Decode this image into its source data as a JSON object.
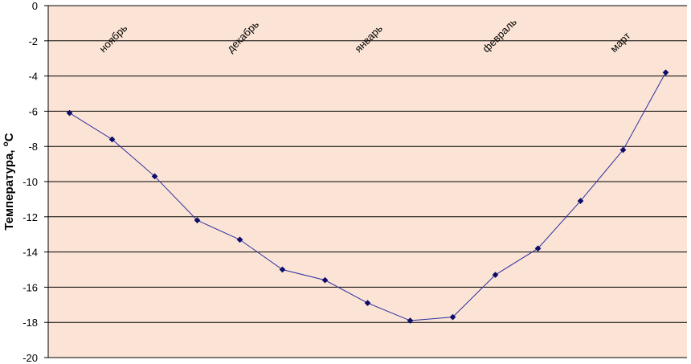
{
  "colors": {
    "plot_background": "#FBE4D5",
    "gridline": "#000000",
    "axis": "#000000",
    "series_line": "#2E2EA0",
    "marker": "#0D0D6B"
  },
  "chart_data": {
    "type": "line",
    "title": "",
    "xlabel": "",
    "ylabel": {
      "main": "Температура, ",
      "unit_sup": "о",
      "unit": "С"
    },
    "ylim": [
      -20,
      0
    ],
    "ytick_step": 2,
    "yticks": [
      "0",
      "-2",
      "-4",
      "-6",
      "-8",
      "-10",
      "-12",
      "-14",
      "-16",
      "-18",
      "-20"
    ],
    "grid": true,
    "legend": "none",
    "month_labels": [
      {
        "label": "ноябрь",
        "x": 1.8
      },
      {
        "label": "декабрь",
        "x": 4.8
      },
      {
        "label": "январь",
        "x": 7.8
      },
      {
        "label": "февраль",
        "x": 10.8
      },
      {
        "label": "март",
        "x": 13.8
      }
    ],
    "series": [
      {
        "x": [
          1,
          2,
          3,
          4,
          5,
          6,
          7,
          8,
          9,
          10,
          11,
          12,
          13,
          14,
          15
        ],
        "values": [
          -6.1,
          -7.6,
          -9.7,
          -12.2,
          -13.3,
          -15.0,
          -15.6,
          -16.9,
          -17.9,
          -17.7,
          -15.3,
          -13.8,
          -11.1,
          -8.2,
          -3.8
        ]
      }
    ]
  }
}
